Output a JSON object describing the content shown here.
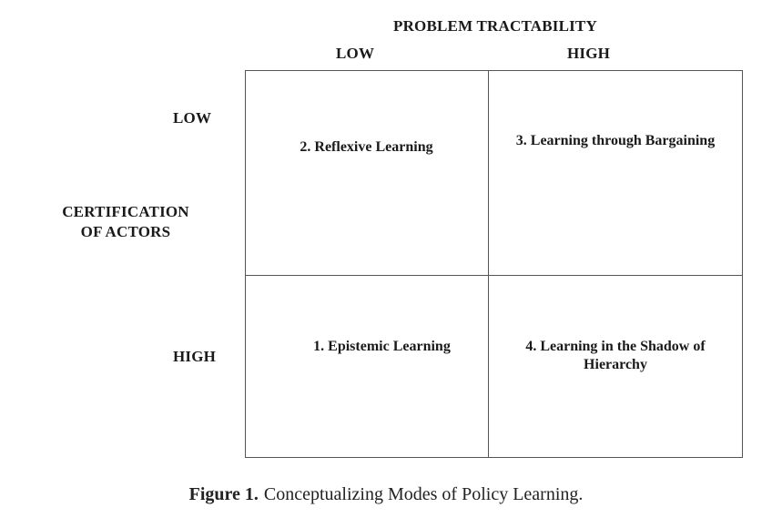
{
  "diagram": {
    "top_axis": {
      "title": "PROBLEM TRACTABILITY",
      "columns": [
        "LOW",
        "HIGH"
      ]
    },
    "left_axis": {
      "title_line1": "CERTIFICATION",
      "title_line2": "OF ACTORS",
      "rows": [
        "LOW",
        "HIGH"
      ]
    },
    "cells": {
      "low_tractability_low_certification": "2. Reflexive Learning",
      "high_tractability_low_certification": "3. Learning through Bargaining",
      "low_tractability_high_certification": "1. Epistemic Learning",
      "high_tractability_high_certification": "4. Learning in the Shadow of Hierarchy"
    }
  },
  "caption": {
    "number": "Figure 1.",
    "text": "Conceptualizing Modes of Policy Learning."
  }
}
